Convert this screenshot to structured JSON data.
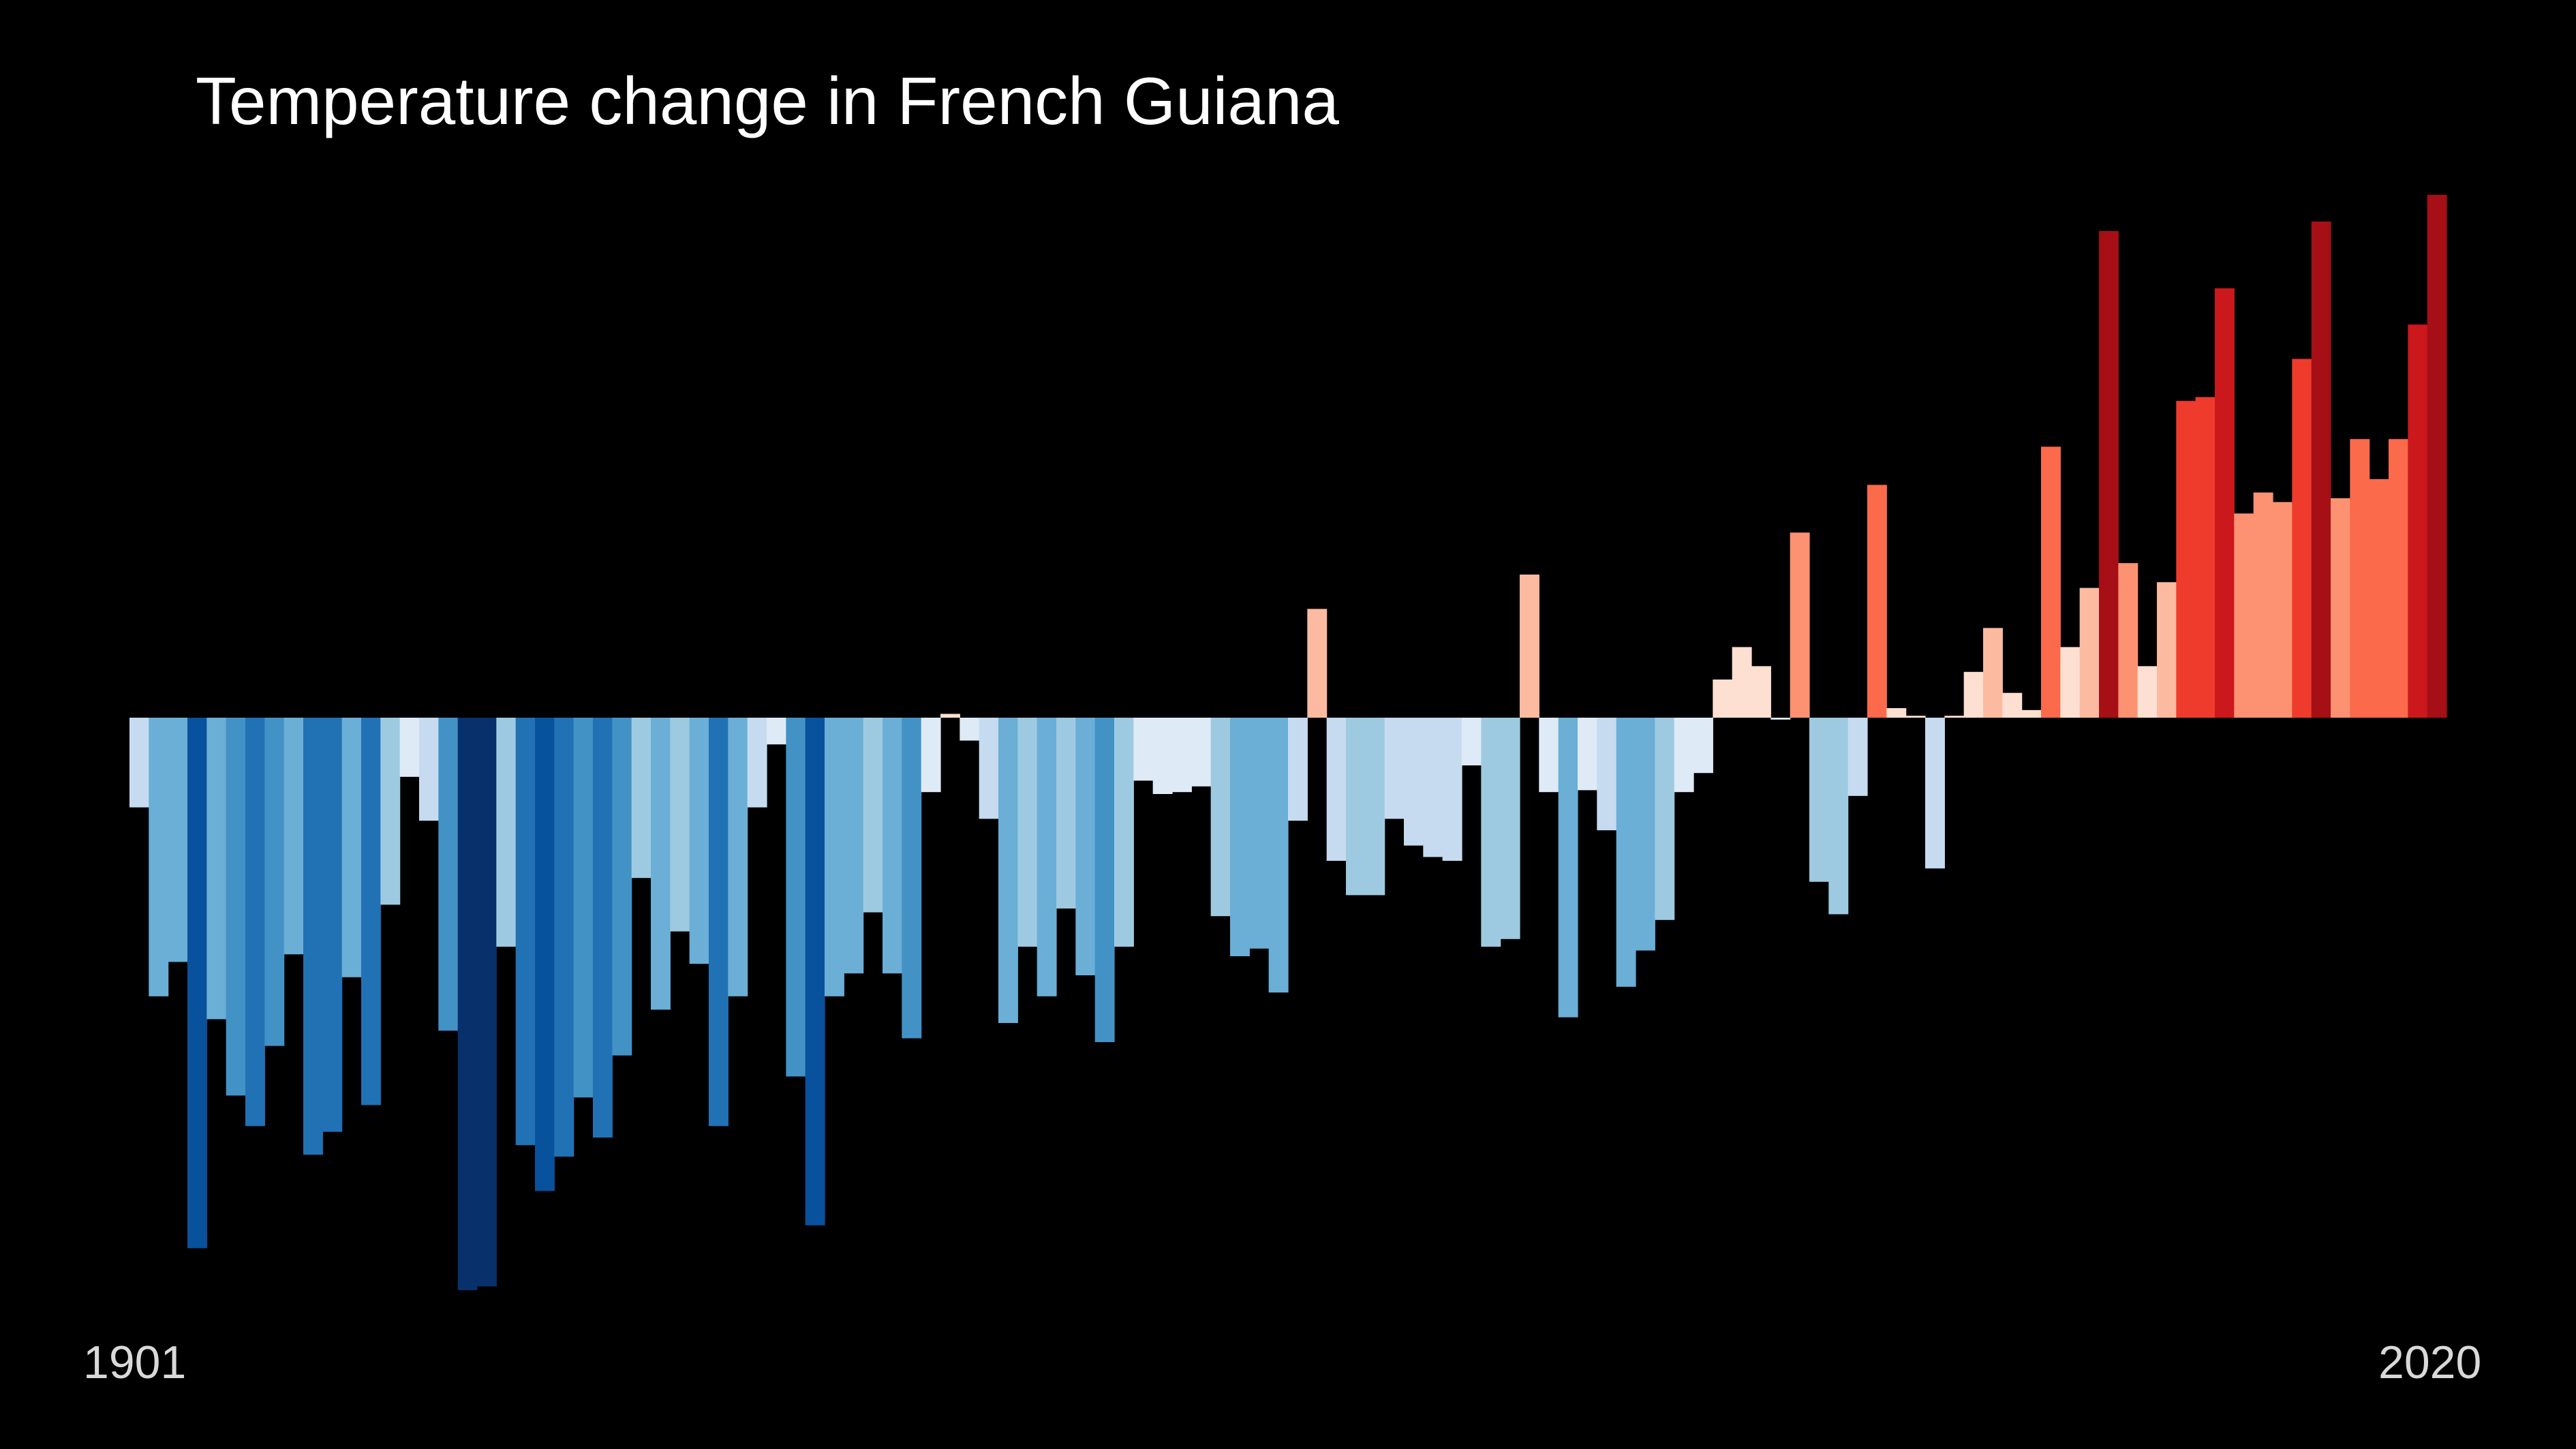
{
  "chart_data": {
    "type": "bar",
    "title": "Temperature change in French Guiana",
    "start_label": "1901",
    "end_label": "2020",
    "start_year": 1901,
    "end_year": 2020,
    "baseline": 0,
    "values": [
      -0.235,
      -0.73,
      -0.64,
      -1.39,
      -0.79,
      -0.99,
      -1.07,
      -0.86,
      -0.62,
      -1.145,
      -1.085,
      -0.68,
      -1.015,
      -0.49,
      -0.155,
      -0.27,
      -0.82,
      -1.5,
      -1.49,
      -0.6,
      -1.12,
      -1.24,
      -1.15,
      -0.995,
      -1.1,
      -0.885,
      -0.42,
      -0.765,
      -0.56,
      -0.645,
      -1.07,
      -0.73,
      -0.235,
      -0.07,
      -0.94,
      -1.33,
      -0.73,
      -0.67,
      -0.51,
      -0.67,
      -0.84,
      -0.195,
      0.01,
      -0.06,
      -0.265,
      -0.8,
      -0.6,
      -0.73,
      -0.5,
      -0.675,
      -0.85,
      -0.6,
      -0.165,
      -0.2,
      -0.195,
      -0.18,
      -0.52,
      -0.625,
      -0.605,
      -0.72,
      -0.27,
      0.285,
      -0.375,
      -0.465,
      -0.465,
      -0.265,
      -0.335,
      -0.365,
      -0.375,
      -0.125,
      -0.6,
      -0.58,
      0.375,
      -0.195,
      -0.785,
      -0.19,
      -0.295,
      -0.705,
      -0.61,
      -0.53,
      -0.195,
      -0.145,
      0.1,
      0.185,
      0.135,
      -0.005,
      0.485,
      -0.43,
      -0.515,
      -0.205,
      0.61,
      0.025,
      0.005,
      -0.395,
      0.005,
      0.12,
      0.235,
      0.065,
      0.02,
      0.71,
      0.185,
      0.34,
      1.275,
      0.405,
      0.135,
      0.355,
      0.83,
      0.84,
      1.125,
      0.535,
      0.59,
      0.565,
      0.94,
      1.3,
      0.575,
      0.73,
      0.625,
      0.73,
      1.03,
      1.37
    ],
    "ylim": [
      -1.6,
      1.6
    ],
    "grid": false,
    "legend": "none",
    "color_scale": {
      "name": "RdBu diverging",
      "stops": [
        "#08306b",
        "#08519c",
        "#2171b5",
        "#4292c6",
        "#6baed6",
        "#9ecae1",
        "#c6dbef",
        "#deebf7",
        "#fee0d2",
        "#fcbba1",
        "#fc9272",
        "#fb6a4a",
        "#ef3b2c",
        "#cb181d",
        "#a50f15",
        "#67000d"
      ]
    },
    "background": "#000000",
    "title_color": "#ffffff",
    "label_color": "#d9d9d9"
  }
}
